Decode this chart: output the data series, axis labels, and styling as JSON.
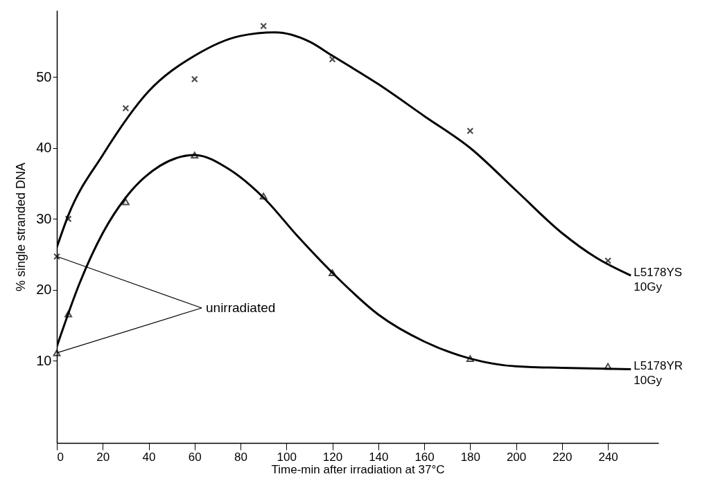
{
  "chart_data": {
    "type": "line",
    "xlabel": "Time-min after irradiation at 37°C",
    "ylabel": "% single stranded DNA",
    "xlim": [
      0,
      262
    ],
    "xticks": [
      0,
      20,
      40,
      60,
      80,
      100,
      120,
      140,
      160,
      180,
      200,
      220,
      240
    ],
    "ylim": [
      -1.6,
      59.4
    ],
    "yticks": [
      10,
      20,
      30,
      40,
      50
    ],
    "grid": false,
    "annotations": [
      {
        "text": "unirradiated",
        "x": 0,
        "y": 24.7
      }
    ],
    "series": [
      {
        "name": "L5178YS 10Gy",
        "marker": "none",
        "color": "#000000",
        "x": [
          0,
          5,
          20,
          40,
          60,
          80,
          95,
          110,
          120,
          140,
          160,
          180,
          200,
          220,
          235,
          250
        ],
        "values": [
          26,
          30.5,
          39,
          48,
          53,
          55.8,
          56.3,
          55,
          53,
          49,
          44.5,
          40,
          34,
          28,
          24.5,
          22
        ]
      },
      {
        "name": "L5178YR 10Gy",
        "marker": "none",
        "color": "#000000",
        "x": [
          0,
          10,
          20,
          30,
          45,
          60,
          75,
          90,
          105,
          120,
          140,
          160,
          180,
          200,
          220,
          250
        ],
        "values": [
          12,
          21,
          28,
          33,
          37.5,
          39,
          37,
          33,
          27.5,
          22.4,
          16.5,
          12.7,
          10.3,
          9.2,
          9,
          8.8
        ]
      },
      {
        "type": "scatter",
        "marker": "cross",
        "color": "#000000",
        "x": [
          0,
          5,
          30,
          60,
          90,
          120,
          180,
          240
        ],
        "values": [
          24.7,
          30,
          45.6,
          49.7,
          57.2,
          52.5,
          42.4,
          24.1
        ]
      },
      {
        "type": "scatter",
        "marker": "triangle",
        "color": "#000000",
        "x": [
          0,
          5,
          30,
          60,
          90,
          120,
          180,
          240
        ],
        "values": [
          11.1,
          16.6,
          32.4,
          39,
          33.2,
          22.4,
          10.3,
          9.2
        ]
      }
    ]
  }
}
